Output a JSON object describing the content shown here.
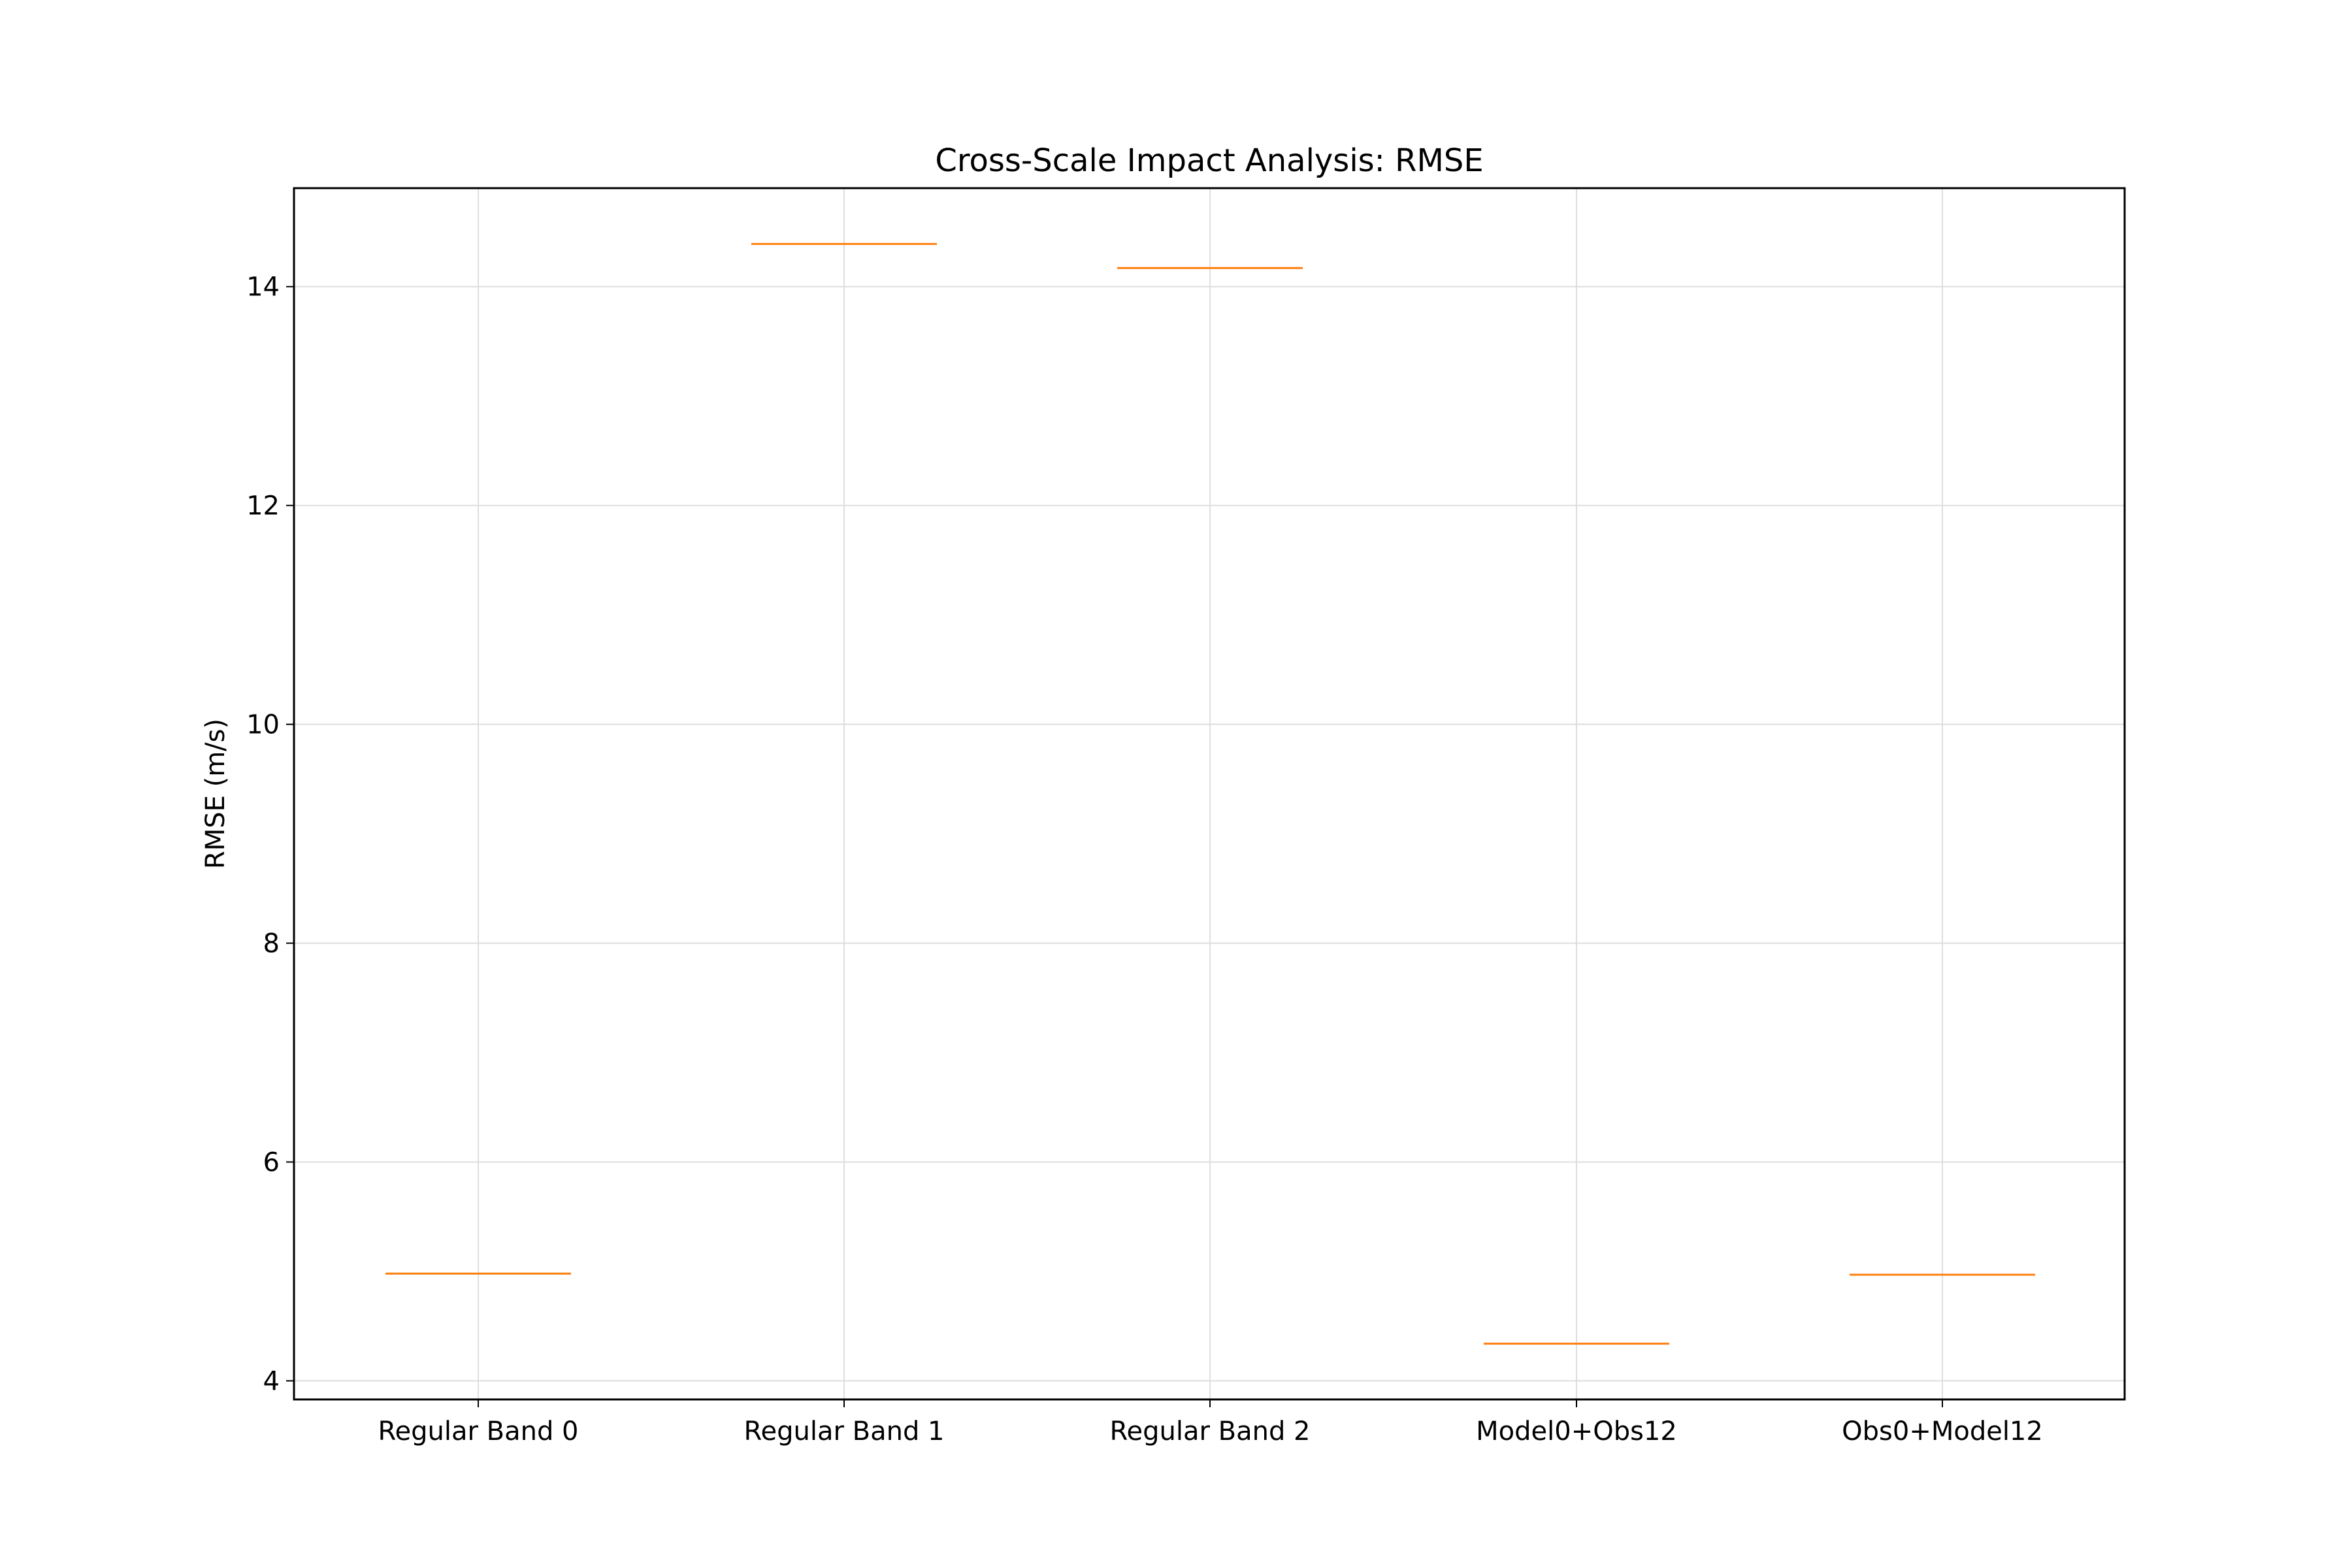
{
  "chart_data": {
    "type": "box",
    "title": "Cross-Scale Impact Analysis: RMSE",
    "xlabel": "",
    "ylabel": "RMSE (m/s)",
    "categories": [
      "Regular Band 0",
      "Regular Band 1",
      "Regular Band 2",
      "Model0+Obs12",
      "Obs0+Model12"
    ],
    "values": [
      4.98,
      14.39,
      14.17,
      4.34,
      4.97
    ],
    "ylim": [
      3.83,
      14.9
    ],
    "yticks": [
      4,
      6,
      8,
      10,
      12,
      14
    ],
    "grid": true,
    "median_color": "#ff7f0e",
    "grid_color": "#dedede"
  }
}
